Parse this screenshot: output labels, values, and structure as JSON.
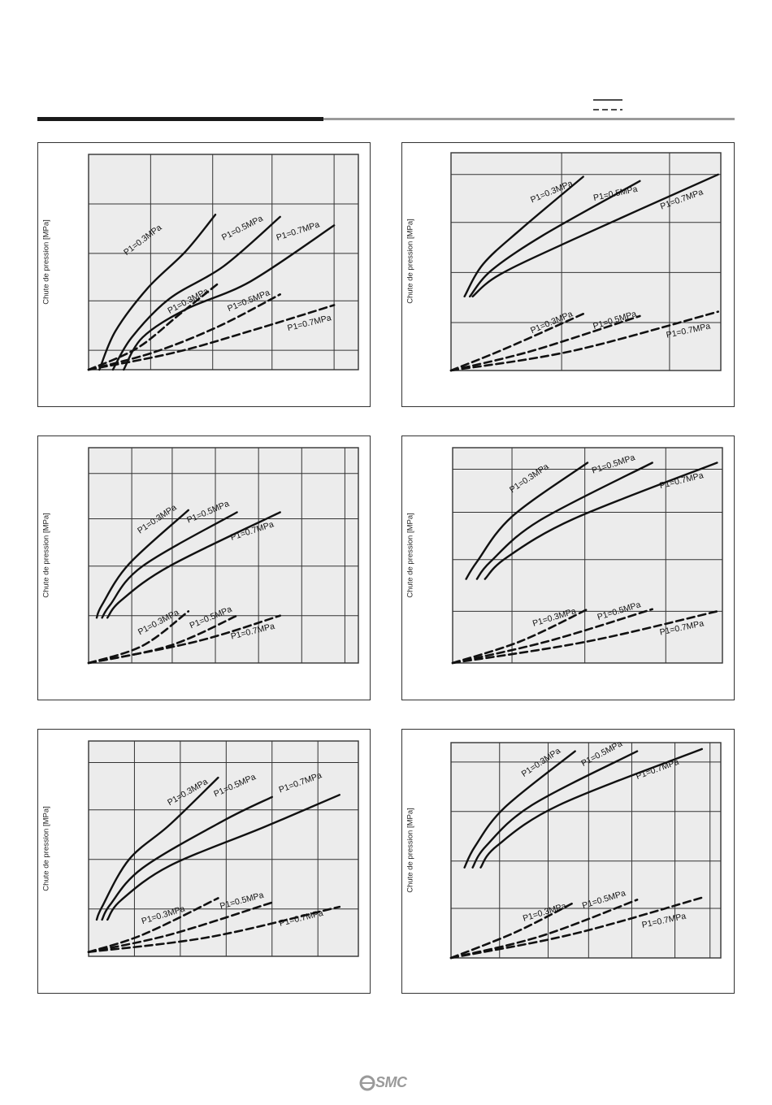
{
  "logo_text": "SMC",
  "chart_data": [
    {
      "type": "line",
      "ylabel": "Chute de pression [MPa]",
      "grid": true,
      "series": [
        {
          "name": "P1=0.3MPa",
          "style": "solid",
          "values": [
            [
              0.04,
              0.0
            ],
            [
              0.1,
              0.18
            ],
            [
              0.22,
              0.38
            ],
            [
              0.36,
              0.55
            ],
            [
              0.47,
              0.72
            ]
          ]
        },
        {
          "name": "P1=0.5MPa",
          "style": "solid",
          "values": [
            [
              0.09,
              0.0
            ],
            [
              0.16,
              0.15
            ],
            [
              0.3,
              0.33
            ],
            [
              0.5,
              0.48
            ],
            [
              0.71,
              0.71
            ]
          ]
        },
        {
          "name": "P1=0.7MPa",
          "style": "solid",
          "values": [
            [
              0.13,
              0.0
            ],
            [
              0.2,
              0.15
            ],
            [
              0.36,
              0.28
            ],
            [
              0.6,
              0.41
            ],
            [
              0.91,
              0.67
            ]
          ]
        },
        {
          "name": "P1=0.3MPa",
          "style": "dashed",
          "values": [
            [
              0.0,
              0.0
            ],
            [
              0.18,
              0.1
            ],
            [
              0.34,
              0.26
            ],
            [
              0.48,
              0.4
            ]
          ]
        },
        {
          "name": "P1=0.5MPa",
          "style": "dashed",
          "values": [
            [
              0.0,
              0.0
            ],
            [
              0.24,
              0.08
            ],
            [
              0.48,
              0.2
            ],
            [
              0.71,
              0.35
            ]
          ]
        },
        {
          "name": "P1=0.7MPa",
          "style": "dashed",
          "values": [
            [
              0.0,
              0.0
            ],
            [
              0.32,
              0.08
            ],
            [
              0.6,
              0.18
            ],
            [
              0.91,
              0.3
            ]
          ]
        }
      ],
      "labels": [
        {
          "text": "P1=0.3MPa",
          "x": 0.14,
          "y": 0.53,
          "angle": -37
        },
        {
          "text": "P1=0.5MPa",
          "x": 0.5,
          "y": 0.6,
          "angle": -27
        },
        {
          "text": "P1=0.7MPa",
          "x": 0.7,
          "y": 0.6,
          "angle": -18
        },
        {
          "text": "P1=0.3MPa",
          "x": 0.3,
          "y": 0.26,
          "angle": -28
        },
        {
          "text": "P1=0.5MPa",
          "x": 0.52,
          "y": 0.27,
          "angle": -22
        },
        {
          "text": "P1=0.7MPa",
          "x": 0.74,
          "y": 0.18,
          "angle": -14
        }
      ]
    },
    {
      "type": "line",
      "ylabel": "Chute de pression [MPa]",
      "grid": true,
      "series": [
        {
          "name": "P1=0.3MPa",
          "style": "solid",
          "values": [
            [
              0.05,
              0.34
            ],
            [
              0.12,
              0.49
            ],
            [
              0.26,
              0.65
            ],
            [
              0.49,
              0.89
            ]
          ]
        },
        {
          "name": "P1=0.5MPa",
          "style": "solid",
          "values": [
            [
              0.07,
              0.34
            ],
            [
              0.15,
              0.46
            ],
            [
              0.34,
              0.62
            ],
            [
              0.7,
              0.87
            ]
          ]
        },
        {
          "name": "P1=0.7MPa",
          "style": "solid",
          "values": [
            [
              0.08,
              0.34
            ],
            [
              0.18,
              0.44
            ],
            [
              0.45,
              0.6
            ],
            [
              0.99,
              0.9
            ]
          ]
        },
        {
          "name": "P1=0.3MPa",
          "style": "dashed",
          "values": [
            [
              0.0,
              0.0
            ],
            [
              0.2,
              0.1
            ],
            [
              0.49,
              0.26
            ]
          ]
        },
        {
          "name": "P1=0.5MPa",
          "style": "dashed",
          "values": [
            [
              0.0,
              0.0
            ],
            [
              0.3,
              0.09
            ],
            [
              0.7,
              0.25
            ]
          ]
        },
        {
          "name": "P1=0.7MPa",
          "style": "dashed",
          "values": [
            [
              0.0,
              0.0
            ],
            [
              0.45,
              0.09
            ],
            [
              0.99,
              0.27
            ]
          ]
        }
      ],
      "labels": [
        {
          "text": "P1=0.3MPa",
          "x": 0.3,
          "y": 0.77,
          "angle": -23
        },
        {
          "text": "P1=0.5MPa",
          "x": 0.53,
          "y": 0.78,
          "angle": -12
        },
        {
          "text": "P1=0.7MPa",
          "x": 0.78,
          "y": 0.74,
          "angle": -20
        },
        {
          "text": "P1=0.3MPa",
          "x": 0.3,
          "y": 0.17,
          "angle": -23
        },
        {
          "text": "P1=0.5MPa",
          "x": 0.53,
          "y": 0.19,
          "angle": -17
        },
        {
          "text": "P1=0.7MPa",
          "x": 0.8,
          "y": 0.15,
          "angle": -12
        }
      ]
    },
    {
      "type": "line",
      "ylabel": "Chute de pression [MPa]",
      "grid": true,
      "series": [
        {
          "name": "P1=0.3MPa",
          "style": "solid",
          "values": [
            [
              0.03,
              0.21
            ],
            [
              0.05,
              0.27
            ],
            [
              0.15,
              0.46
            ],
            [
              0.37,
              0.71
            ]
          ]
        },
        {
          "name": "P1=0.5MPa",
          "style": "solid",
          "values": [
            [
              0.05,
              0.21
            ],
            [
              0.08,
              0.27
            ],
            [
              0.2,
              0.45
            ],
            [
              0.55,
              0.7
            ]
          ]
        },
        {
          "name": "P1=0.7MPa",
          "style": "solid",
          "values": [
            [
              0.07,
              0.21
            ],
            [
              0.12,
              0.29
            ],
            [
              0.3,
              0.45
            ],
            [
              0.71,
              0.7
            ]
          ]
        },
        {
          "name": "P1=0.3MPa",
          "style": "dashed",
          "values": [
            [
              0.0,
              0.0
            ],
            [
              0.2,
              0.08
            ],
            [
              0.37,
              0.24
            ]
          ]
        },
        {
          "name": "P1=0.5MPa",
          "style": "dashed",
          "values": [
            [
              0.0,
              0.0
            ],
            [
              0.3,
              0.08
            ],
            [
              0.55,
              0.22
            ]
          ]
        },
        {
          "name": "P1=0.7MPa",
          "style": "dashed",
          "values": [
            [
              0.0,
              0.0
            ],
            [
              0.4,
              0.1
            ],
            [
              0.71,
              0.22
            ]
          ]
        }
      ],
      "labels": [
        {
          "text": "P1=0.3MPa",
          "x": 0.19,
          "y": 0.6,
          "angle": -34
        },
        {
          "text": "P1=0.5MPa",
          "x": 0.37,
          "y": 0.65,
          "angle": -23
        },
        {
          "text": "P1=0.7MPa",
          "x": 0.53,
          "y": 0.57,
          "angle": -18
        },
        {
          "text": "P1=0.3MPa",
          "x": 0.19,
          "y": 0.13,
          "angle": -28
        },
        {
          "text": "P1=0.5MPa",
          "x": 0.38,
          "y": 0.16,
          "angle": -23
        },
        {
          "text": "P1=0.7MPa",
          "x": 0.53,
          "y": 0.11,
          "angle": -14
        }
      ]
    },
    {
      "type": "line",
      "ylabel": "Chute de pression [MPa]",
      "grid": true,
      "series": [
        {
          "name": "P1=0.3MPa",
          "style": "solid",
          "values": [
            [
              0.05,
              0.39
            ],
            [
              0.09,
              0.47
            ],
            [
              0.22,
              0.68
            ],
            [
              0.5,
              0.93
            ]
          ]
        },
        {
          "name": "P1=0.5MPa",
          "style": "solid",
          "values": [
            [
              0.09,
              0.39
            ],
            [
              0.14,
              0.47
            ],
            [
              0.32,
              0.66
            ],
            [
              0.74,
              0.93
            ]
          ]
        },
        {
          "name": "P1=0.7MPa",
          "style": "solid",
          "values": [
            [
              0.12,
              0.39
            ],
            [
              0.2,
              0.49
            ],
            [
              0.45,
              0.67
            ],
            [
              0.98,
              0.93
            ]
          ]
        },
        {
          "name": "P1=0.3MPa",
          "style": "dashed",
          "values": [
            [
              0.0,
              0.0
            ],
            [
              0.25,
              0.1
            ],
            [
              0.5,
              0.25
            ]
          ]
        },
        {
          "name": "P1=0.5MPa",
          "style": "dashed",
          "values": [
            [
              0.0,
              0.0
            ],
            [
              0.35,
              0.1
            ],
            [
              0.74,
              0.25
            ]
          ]
        },
        {
          "name": "P1=0.7MPa",
          "style": "dashed",
          "values": [
            [
              0.0,
              0.0
            ],
            [
              0.5,
              0.1
            ],
            [
              0.98,
              0.24
            ]
          ]
        }
      ],
      "labels": [
        {
          "text": "P1=0.3MPa",
          "x": 0.22,
          "y": 0.79,
          "angle": -34
        },
        {
          "text": "P1=0.5MPa",
          "x": 0.52,
          "y": 0.88,
          "angle": -18
        },
        {
          "text": "P1=0.7MPa",
          "x": 0.77,
          "y": 0.81,
          "angle": -14
        },
        {
          "text": "P1=0.3MPa",
          "x": 0.3,
          "y": 0.17,
          "angle": -17
        },
        {
          "text": "P1=0.5MPa",
          "x": 0.54,
          "y": 0.2,
          "angle": -17
        },
        {
          "text": "P1=0.7MPa",
          "x": 0.77,
          "y": 0.13,
          "angle": -12
        }
      ]
    },
    {
      "type": "line",
      "ylabel": "Chute de pression [MPa]",
      "grid": true,
      "series": [
        {
          "name": "P1=0.3MPa",
          "style": "solid",
          "values": [
            [
              0.03,
              0.17
            ],
            [
              0.05,
              0.23
            ],
            [
              0.15,
              0.45
            ],
            [
              0.3,
              0.61
            ],
            [
              0.48,
              0.83
            ]
          ]
        },
        {
          "name": "P1=0.5MPa",
          "style": "solid",
          "values": [
            [
              0.05,
              0.17
            ],
            [
              0.08,
              0.24
            ],
            [
              0.2,
              0.41
            ],
            [
              0.5,
              0.63
            ],
            [
              0.68,
              0.74
            ]
          ]
        },
        {
          "name": "P1=0.7MPa",
          "style": "solid",
          "values": [
            [
              0.07,
              0.17
            ],
            [
              0.12,
              0.26
            ],
            [
              0.3,
              0.42
            ],
            [
              0.65,
              0.6
            ],
            [
              0.93,
              0.75
            ]
          ]
        },
        {
          "name": "P1=0.3MPa",
          "style": "dashed",
          "values": [
            [
              0.0,
              0.02
            ],
            [
              0.2,
              0.1
            ],
            [
              0.48,
              0.27
            ]
          ]
        },
        {
          "name": "P1=0.5MPa",
          "style": "dashed",
          "values": [
            [
              0.0,
              0.02
            ],
            [
              0.3,
              0.1
            ],
            [
              0.68,
              0.25
            ]
          ]
        },
        {
          "name": "P1=0.7MPa",
          "style": "dashed",
          "values": [
            [
              0.0,
              0.02
            ],
            [
              0.45,
              0.09
            ],
            [
              0.93,
              0.23
            ]
          ]
        }
      ],
      "labels": [
        {
          "text": "P1=0.3MPa",
          "x": 0.3,
          "y": 0.7,
          "angle": -30
        },
        {
          "text": "P1=0.5MPa",
          "x": 0.47,
          "y": 0.74,
          "angle": -24
        },
        {
          "text": "P1=0.7MPa",
          "x": 0.71,
          "y": 0.76,
          "angle": -20
        },
        {
          "text": "P1=0.3MPa",
          "x": 0.2,
          "y": 0.15,
          "angle": -17
        },
        {
          "text": "P1=0.5MPa",
          "x": 0.49,
          "y": 0.22,
          "angle": -15
        },
        {
          "text": "P1=0.7MPa",
          "x": 0.71,
          "y": 0.14,
          "angle": -14
        }
      ]
    },
    {
      "type": "line",
      "ylabel": "Chute de pression [MPa]",
      "grid": true,
      "series": [
        {
          "name": "P1=0.3MPa",
          "style": "solid",
          "values": [
            [
              0.05,
              0.42
            ],
            [
              0.09,
              0.52
            ],
            [
              0.2,
              0.7
            ],
            [
              0.46,
              0.96
            ]
          ]
        },
        {
          "name": "P1=0.5MPa",
          "style": "solid",
          "values": [
            [
              0.08,
              0.42
            ],
            [
              0.13,
              0.52
            ],
            [
              0.3,
              0.71
            ],
            [
              0.69,
              0.96
            ]
          ]
        },
        {
          "name": "P1=0.7MPa",
          "style": "solid",
          "values": [
            [
              0.11,
              0.42
            ],
            [
              0.17,
              0.52
            ],
            [
              0.4,
              0.71
            ],
            [
              0.93,
              0.97
            ]
          ]
        },
        {
          "name": "P1=0.3MPa",
          "style": "dashed",
          "values": [
            [
              0.0,
              0.0
            ],
            [
              0.24,
              0.12
            ],
            [
              0.46,
              0.26
            ]
          ]
        },
        {
          "name": "P1=0.5MPa",
          "style": "dashed",
          "values": [
            [
              0.0,
              0.0
            ],
            [
              0.33,
              0.1
            ],
            [
              0.69,
              0.27
            ]
          ]
        },
        {
          "name": "P1=0.7MPa",
          "style": "dashed",
          "values": [
            [
              0.0,
              0.0
            ],
            [
              0.45,
              0.11
            ],
            [
              0.93,
              0.28
            ]
          ]
        }
      ],
      "labels": [
        {
          "text": "P1=0.3MPa",
          "x": 0.27,
          "y": 0.84,
          "angle": -34
        },
        {
          "text": "P1=0.5MPa",
          "x": 0.49,
          "y": 0.89,
          "angle": -28
        },
        {
          "text": "P1=0.7MPa",
          "x": 0.69,
          "y": 0.83,
          "angle": -20
        },
        {
          "text": "P1=0.3MPa",
          "x": 0.27,
          "y": 0.17,
          "angle": -17
        },
        {
          "text": "P1=0.5MPa",
          "x": 0.49,
          "y": 0.23,
          "angle": -17
        },
        {
          "text": "P1=0.7MPa",
          "x": 0.71,
          "y": 0.14,
          "angle": -12
        }
      ]
    }
  ]
}
